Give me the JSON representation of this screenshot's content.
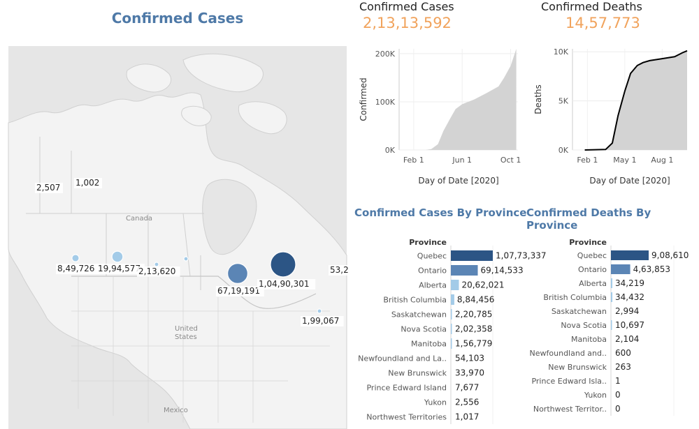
{
  "map": {
    "title": "Confirmed Cases",
    "labels": {
      "canada": "Canada",
      "us_1": "United",
      "us_2": "States",
      "mexico": "Mexico"
    },
    "bubbles": [
      {
        "name": "Yukon",
        "value": "2,507",
        "size": 0
      },
      {
        "name": "Northwest Territories",
        "value": "1,002",
        "size": 0
      },
      {
        "name": "British Columbia",
        "value": "8,49,726",
        "size": 849726
      },
      {
        "name": "Alberta",
        "value": "19,94,577",
        "size": 1994577
      },
      {
        "name": "Saskatchewan",
        "value": "2,13,620",
        "size": 213620
      },
      {
        "name": "Manitoba",
        "value": "",
        "size": 160000
      },
      {
        "name": "Ontario",
        "value": "67,19,191",
        "size": 6719191
      },
      {
        "name": "Quebec",
        "value": "1,04,90,301",
        "size": 10490301
      },
      {
        "name": "Newfoundland",
        "value": "53,2",
        "size": 0
      },
      {
        "name": "Nova Scotia",
        "value": "1,99,067",
        "size": 199067
      }
    ]
  },
  "kpis": {
    "cases_title": "Confirmed Cases",
    "cases_value": "2,13,13,592",
    "deaths_title": "Confirmed Deaths",
    "deaths_value": "14,57,773"
  },
  "colors": {
    "accent": "#4e79a7",
    "dark": "#2c5585",
    "light": "#a3cbe8",
    "kpi": "#f1a35c",
    "area": "#d3d3d3"
  },
  "chart_data": [
    {
      "type": "area",
      "title": "",
      "xlabel": "Day of Date [2020]",
      "ylabel": "Confirmed",
      "xticks": [
        "Feb 1",
        "Jun 1",
        "Oct 1"
      ],
      "yticks": [
        "0K",
        "100K",
        "200K"
      ],
      "ylim": [
        0,
        210000
      ],
      "x": [
        "Jan 25",
        "Mar 1",
        "Mar 15",
        "Apr 1",
        "Apr 15",
        "May 1",
        "May 15",
        "Jun 1",
        "Jul 1",
        "Aug 1",
        "Sep 1",
        "Sep 15",
        "Oct 1",
        "Oct 15"
      ],
      "y": [
        0,
        0,
        2000,
        12000,
        40000,
        65000,
        85000,
        95000,
        105000,
        118000,
        132000,
        150000,
        175000,
        210000
      ]
    },
    {
      "type": "area",
      "title": "",
      "xlabel": "Day of Date [2020]",
      "ylabel": "Deaths",
      "xticks": [
        "Feb 1",
        "May 1",
        "Aug 1"
      ],
      "yticks": [
        "0K",
        "5K",
        "10K"
      ],
      "ylim": [
        0,
        10300
      ],
      "x": [
        "Jan 25",
        "Mar 15",
        "Apr 1",
        "Apr 15",
        "May 1",
        "May 15",
        "Jun 1",
        "Jun 15",
        "Jul 1",
        "Aug 1",
        "Sep 1",
        "Sep 20",
        "Oct 1"
      ],
      "y": [
        0,
        50,
        700,
        3500,
        6000,
        7800,
        8600,
        8900,
        9100,
        9300,
        9500,
        9900,
        10100
      ]
    },
    {
      "type": "bar",
      "title": "Confirmed Cases By Province",
      "header": "Province",
      "categories": [
        "Quebec",
        "Ontario",
        "Alberta",
        "British Columbia",
        "Saskatchewan",
        "Nova Scotia",
        "Manitoba",
        "Newfoundland and La..",
        "New Brunswick",
        "Prince Edward Island",
        "Yukon",
        "Northwest Territories"
      ],
      "values": [
        10773337,
        6914533,
        2062021,
        884456,
        220785,
        202358,
        156779,
        54103,
        33970,
        7677,
        2556,
        1017
      ],
      "labels": [
        "1,07,73,337",
        "69,14,533",
        "20,62,021",
        "8,84,456",
        "2,20,785",
        "2,02,358",
        "1,56,779",
        "54,103",
        "33,970",
        "7,677",
        "2,556",
        "1,017"
      ]
    },
    {
      "type": "bar",
      "title": "Confirmed Deaths By Province",
      "header": "Province",
      "categories": [
        "Quebec",
        "Ontario",
        "Alberta",
        "British Columbia",
        "Saskatchewan",
        "Nova Scotia",
        "Manitoba",
        "Newfoundland and..",
        "New Brunswick",
        "Prince Edward Isla..",
        "Yukon",
        "Northwest Territor.."
      ],
      "values": [
        908610,
        463853,
        34219,
        34432,
        2994,
        10697,
        2104,
        600,
        263,
        1,
        0,
        0
      ],
      "labels": [
        "9,08,610",
        "4,63,853",
        "34,219",
        "34,432",
        "2,994",
        "10,697",
        "2,104",
        "600",
        "263",
        "1",
        "0",
        "0"
      ]
    }
  ]
}
